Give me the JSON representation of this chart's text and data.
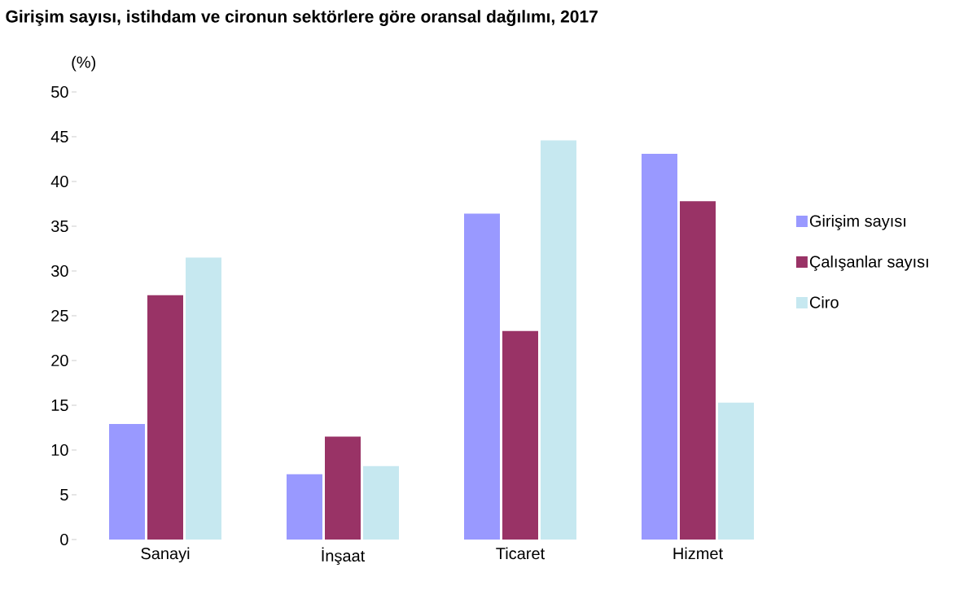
{
  "chart_data": {
    "type": "bar",
    "title": "Girişim sayısı, istihdam ve cironun sektörlere göre oransal dağılımı, 2017",
    "ylabel": "(%)",
    "categories": [
      "Sanayi",
      "İnşaat",
      "Ticaret",
      "Hizmet"
    ],
    "series": [
      {
        "name": "Girişim sayısı",
        "color": "#9999ff",
        "values": [
          12.9,
          7.3,
          36.4,
          43.1
        ]
      },
      {
        "name": "Çalışanlar sayısı",
        "color": "#993366",
        "values": [
          27.3,
          11.5,
          23.3,
          37.8
        ]
      },
      {
        "name": "Ciro",
        "color": "#c6e8f0",
        "values": [
          31.5,
          8.2,
          44.6,
          15.3
        ]
      }
    ],
    "ylim": [
      0,
      50
    ],
    "yticks": [
      0,
      5,
      10,
      15,
      20,
      25,
      30,
      35,
      40,
      45,
      50
    ],
    "grid": false,
    "legend": "right"
  }
}
